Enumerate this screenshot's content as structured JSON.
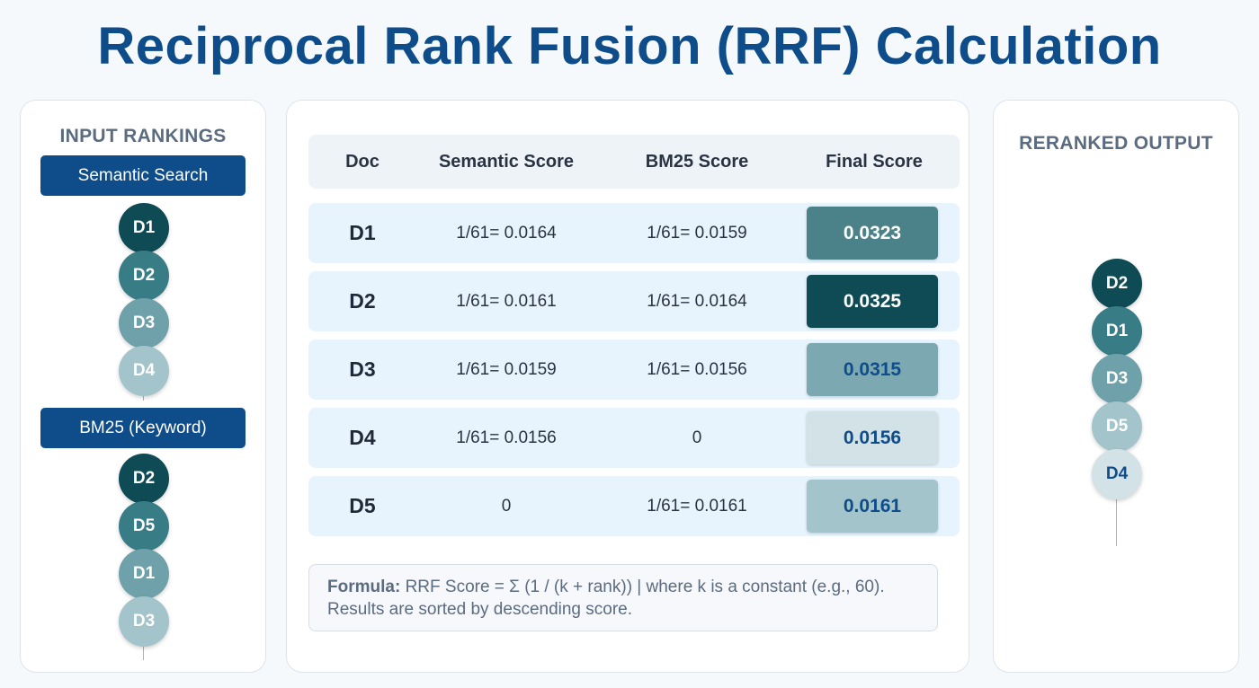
{
  "title": "Reciprocal Rank Fusion (RRF) Calculation",
  "colors": {
    "title": "#0f4c8a",
    "label_bg": "#0f4c8a",
    "row_bg": "#e8f4fd",
    "rank_shades": [
      "#0e4b55",
      "#387d86",
      "#6fa1aa",
      "#a3c4ca",
      "#d3e2e6"
    ],
    "final_text_light": "#ffffff",
    "final_text_dark": "#0f4c8a"
  },
  "input": {
    "heading": "INPUT RANKINGS",
    "lists": [
      {
        "label": "Semantic Search",
        "items": [
          "D1",
          "D2",
          "D3",
          "D4"
        ]
      },
      {
        "label": "BM25 (Keyword)",
        "items": [
          "D2",
          "D5",
          "D1",
          "D3"
        ]
      }
    ]
  },
  "table": {
    "headers": {
      "doc": "Doc",
      "semantic": "Semantic Score",
      "bm25": "BM25 Score",
      "final": "Final Score"
    },
    "rows": [
      {
        "doc": "D1",
        "semantic": "1/61= 0.0164",
        "bm25": "1/61= 0.0159",
        "final": "0.0323",
        "bg": "#4b8289",
        "fg": "#ffffff"
      },
      {
        "doc": "D2",
        "semantic": "1/61= 0.0161",
        "bm25": "1/61= 0.0164",
        "final": "0.0325",
        "bg": "#0e4b55",
        "fg": "#ffffff"
      },
      {
        "doc": "D3",
        "semantic": "1/61= 0.0159",
        "bm25": "1/61= 0.0156",
        "final": "0.0315",
        "bg": "#7ba8b1",
        "fg": "#0f4c8a"
      },
      {
        "doc": "D4",
        "semantic": "1/61= 0.0156",
        "bm25": "0",
        "final": "0.0156",
        "bg": "#d3e2e6",
        "fg": "#0f4c8a"
      },
      {
        "doc": "D5",
        "semantic": "0",
        "bm25": "1/61= 0.0161",
        "final": "0.0161",
        "bg": "#a2c4ca",
        "fg": "#0f4c8a"
      }
    ]
  },
  "formula": {
    "label": "Formula:",
    "text": "RRF Score = Σ (1 / (k + rank)) | where k is a constant (e.g., 60). Results are sorted by descending score."
  },
  "output": {
    "heading": "RERANKED OUTPUT",
    "items": [
      "D2",
      "D1",
      "D3",
      "D5",
      "D4"
    ]
  }
}
